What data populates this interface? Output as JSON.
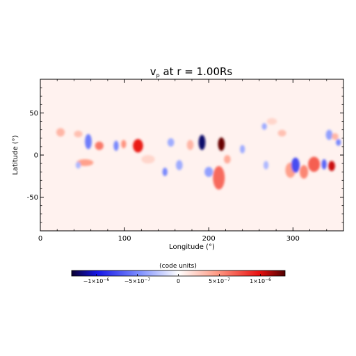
{
  "chart_data": {
    "type": "heatmap",
    "title": "vp at r = 1.00Rs",
    "title_parts": {
      "symbol": "v",
      "subscript": "p",
      "rest": " at r = 1.00Rs"
    },
    "xlabel": "Longitude (°)",
    "ylabel": "Latitude (°)",
    "xlim": [
      0,
      360
    ],
    "ylim": [
      -90,
      90
    ],
    "xticks": [
      {
        "value": 0,
        "label": "0"
      },
      {
        "value": 100,
        "label": "100"
      },
      {
        "value": 200,
        "label": "200"
      },
      {
        "value": 300,
        "label": "300"
      }
    ],
    "yticks": [
      {
        "value": 50,
        "label": "50"
      },
      {
        "value": 0,
        "label": "0"
      },
      {
        "value": -50,
        "label": "-50"
      }
    ],
    "background_value": 0.06,
    "features": [
      {
        "lon": 192,
        "lat": 15,
        "value": -1.2,
        "rlon": 4,
        "rlat": 9
      },
      {
        "lon": 215,
        "lat": 13,
        "value": 1.25,
        "rlon": 4,
        "rlat": 8
      },
      {
        "lon": 116,
        "lat": 11,
        "value": 0.95,
        "rlon": 6,
        "rlat": 8
      },
      {
        "lon": 99,
        "lat": 13,
        "value": 0.5,
        "rlon": 3,
        "rlat": 5
      },
      {
        "lon": 90,
        "lat": 11,
        "value": -0.5,
        "rlon": 3,
        "rlat": 6
      },
      {
        "lon": 57,
        "lat": 16,
        "value": -0.55,
        "rlon": 4,
        "rlat": 9
      },
      {
        "lon": 70,
        "lat": 11,
        "value": 0.6,
        "rlon": 5,
        "rlat": 5
      },
      {
        "lon": 24,
        "lat": 27,
        "value": 0.35,
        "rlon": 5,
        "rlat": 5
      },
      {
        "lon": 45,
        "lat": 25,
        "value": 0.3,
        "rlon": 5,
        "rlat": 4
      },
      {
        "lon": 53,
        "lat": -9,
        "value": 0.45,
        "rlon": 10,
        "rlat": 4
      },
      {
        "lon": 45,
        "lat": -12,
        "value": -0.3,
        "rlon": 3,
        "rlat": 4
      },
      {
        "lon": 155,
        "lat": 15,
        "value": -0.35,
        "rlon": 4,
        "rlat": 5
      },
      {
        "lon": 148,
        "lat": -20,
        "value": -0.5,
        "rlon": 3,
        "rlat": 5
      },
      {
        "lon": 165,
        "lat": -12,
        "value": -0.35,
        "rlon": 4,
        "rlat": 6
      },
      {
        "lon": 178,
        "lat": 12,
        "value": 0.35,
        "rlon": 4,
        "rlat": 6
      },
      {
        "lon": 200,
        "lat": -20,
        "value": -0.4,
        "rlon": 5,
        "rlat": 6
      },
      {
        "lon": 212,
        "lat": -27,
        "value": 0.65,
        "rlon": 7,
        "rlat": 14
      },
      {
        "lon": 222,
        "lat": -5,
        "value": 0.4,
        "rlon": 4,
        "rlat": 5
      },
      {
        "lon": 240,
        "lat": 7,
        "value": -0.35,
        "rlon": 3,
        "rlat": 5
      },
      {
        "lon": 287,
        "lat": 26,
        "value": 0.3,
        "rlon": 5,
        "rlat": 4
      },
      {
        "lon": 297,
        "lat": -18,
        "value": 0.45,
        "rlon": 6,
        "rlat": 9
      },
      {
        "lon": 303,
        "lat": -12,
        "value": -0.75,
        "rlon": 5,
        "rlat": 9
      },
      {
        "lon": 313,
        "lat": -20,
        "value": 0.55,
        "rlon": 5,
        "rlat": 8
      },
      {
        "lon": 325,
        "lat": -11,
        "value": 0.7,
        "rlon": 7,
        "rlat": 9
      },
      {
        "lon": 337,
        "lat": -11,
        "value": -0.65,
        "rlon": 3,
        "rlat": 6
      },
      {
        "lon": 346,
        "lat": -13,
        "value": 1.05,
        "rlon": 4,
        "rlat": 6
      },
      {
        "lon": 343,
        "lat": 24,
        "value": -0.4,
        "rlon": 4,
        "rlat": 6
      },
      {
        "lon": 354,
        "lat": 15,
        "value": -0.5,
        "rlon": 3,
        "rlat": 4
      },
      {
        "lon": 350,
        "lat": 22,
        "value": 0.35,
        "rlon": 4,
        "rlat": 4
      },
      {
        "lon": 266,
        "lat": 34,
        "value": -0.35,
        "rlon": 3,
        "rlat": 4
      },
      {
        "lon": 275,
        "lat": 40,
        "value": 0.2,
        "rlon": 6,
        "rlat": 4
      },
      {
        "lon": 268,
        "lat": -12,
        "value": -0.3,
        "rlon": 3,
        "rlat": 5
      },
      {
        "lon": 128,
        "lat": -5,
        "value": 0.2,
        "rlon": 8,
        "rlat": 5
      }
    ],
    "colorbar": {
      "title": "(code units)",
      "range": [
        -1.3,
        1.3
      ],
      "scale_exponent": -6,
      "ticks": [
        {
          "value": -1.0,
          "mantissa": "−1×10",
          "exp": "−6"
        },
        {
          "value": -0.5,
          "mantissa": "−5×10",
          "exp": "−7"
        },
        {
          "value": 0.0,
          "mantissa": "0",
          "exp": ""
        },
        {
          "value": 0.5,
          "mantissa": "5×10",
          "exp": "−7"
        },
        {
          "value": 1.0,
          "mantissa": "1×10",
          "exp": "−6"
        }
      ],
      "colors": {
        "neg_max": "#0a0030",
        "neg_strong": "#1515e6",
        "neg_mid": "#7f90ff",
        "zero": "#ffffff",
        "pos_mid": "#ff9c86",
        "pos_strong": "#e81010",
        "pos_max": "#500000"
      }
    }
  }
}
